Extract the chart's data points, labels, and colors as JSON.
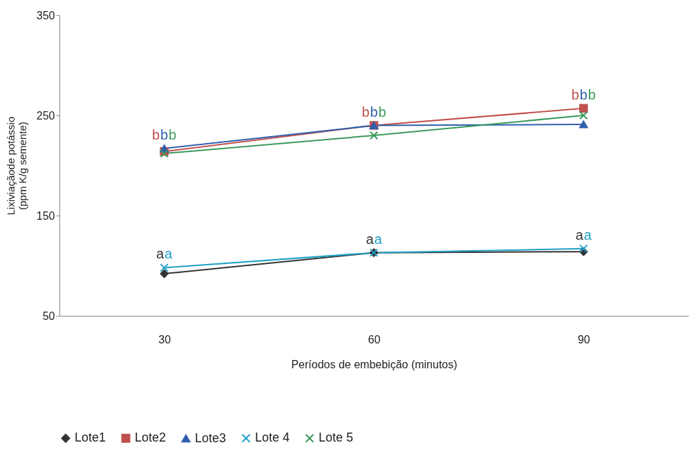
{
  "chart_data": {
    "type": "line",
    "xlabel": "Períodos de embebição (minutos)",
    "ylabel": "Lixiviaçãode potássio\n(ppm K/g semente)",
    "categories": [
      "30",
      "60",
      "90"
    ],
    "series": [
      {
        "name": "Lote1",
        "color": "#333333",
        "marker": "diamond",
        "values": [
          92,
          113,
          114
        ],
        "value_labels": [
          "a",
          "a",
          "a"
        ]
      },
      {
        "name": "Lote2",
        "color": "#c0504d",
        "marker": "square",
        "values": [
          214,
          240,
          257
        ],
        "value_labels": [
          "b",
          "b",
          "b"
        ]
      },
      {
        "name": "Lote3",
        "color": "#2e5fad",
        "marker": "triangle",
        "values": [
          217,
          240,
          241
        ],
        "value_labels": [
          "b",
          "b",
          "b"
        ]
      },
      {
        "name": "Lote 4",
        "color": "#1fa0c8",
        "marker": "cross",
        "values": [
          98,
          113,
          117
        ],
        "value_labels": [
          "a",
          "a",
          "a"
        ]
      },
      {
        "name": "Lote 5",
        "color": "#3a9a5c",
        "marker": "cross",
        "values": [
          212,
          230,
          250
        ],
        "value_labels": [
          "b",
          "b",
          "b"
        ]
      }
    ],
    "ylim": [
      50,
      350
    ],
    "yticks": [
      50,
      150,
      250,
      350
    ],
    "grid": false,
    "legend": "bottom"
  }
}
